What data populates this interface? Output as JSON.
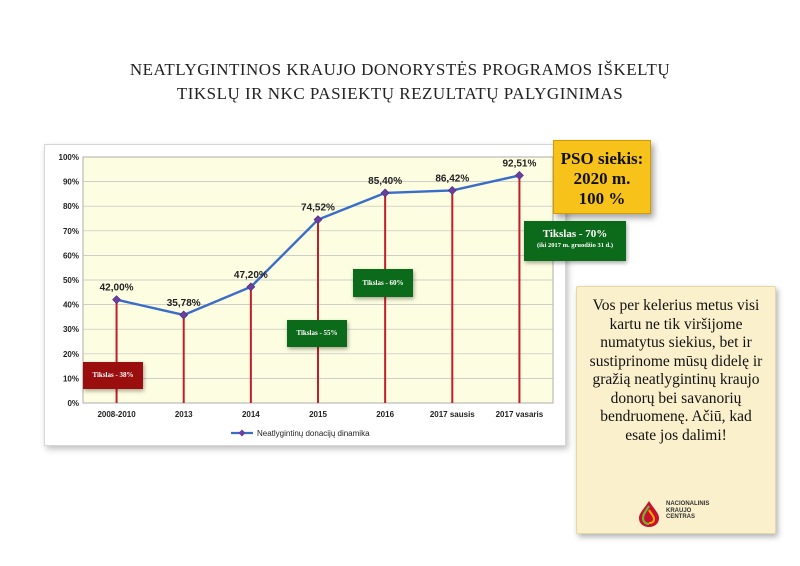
{
  "title": {
    "line1": "NEATLYGINTINOS KRAUJO DONORYSTĖS PROGRAMOS IŠKELTŲ",
    "line2": "TIKSLŲ IR NKC PASIEKTŲ REZULTATŲ PALYGINIMAS"
  },
  "chart_data": {
    "type": "line",
    "categories": [
      "2008-2010",
      "2013",
      "2014",
      "2015",
      "2016",
      "2017 sausis",
      "2017 vasaris"
    ],
    "series": [
      {
        "name": "Neatlygintinų donacijų dinamika",
        "values": [
          42.0,
          35.78,
          47.2,
          74.52,
          85.4,
          86.42,
          92.51
        ]
      }
    ],
    "data_labels": [
      "42,00%",
      "35,78%",
      "47,20%",
      "74,52%",
      "85,40%",
      "86,42%",
      "92,51%"
    ],
    "y_ticks": [
      "0%",
      "10%",
      "20%",
      "30%",
      "40%",
      "50%",
      "60%",
      "70%",
      "80%",
      "90%",
      "100%"
    ],
    "ylim": [
      0,
      100
    ],
    "grid": true,
    "drop_lines": true,
    "legend_position": "bottom",
    "colors": {
      "line": "#3a6cc9",
      "marker": "#6b3f9e",
      "drop_line": "#c01e2a",
      "plot_bg": "#fdfde1",
      "grid": "#bfbfbf"
    }
  },
  "targets": [
    {
      "label": "Tikslas - 38%",
      "color": "#9b0e0e"
    },
    {
      "label": "Tikslas - 55%",
      "color": "#0c6b1a"
    },
    {
      "label": "Tikslas - 60%",
      "color": "#0c6b1a"
    },
    {
      "label": "Tikslas -  70%",
      "sublabel": "(iki 2017 m. gruodžio 31 d.)",
      "color": "#0c6b1a"
    }
  ],
  "pso": {
    "line1": "PSO siekis:",
    "line2": "2020 m.",
    "line3": "100 %",
    "color": "#f7c21a"
  },
  "note": {
    "text": "Vos per kelerius metus visi kartu ne tik viršijome numatytus siekius, bet ir sustiprinome mūsų didelę ir gražią neatlygintinų kraujo donorų bei savanorių bendruomenę. Ačiū, kad esate jos dalimi!"
  },
  "logo": {
    "line1": "NACIONALINIS",
    "line2": "KRAUJO",
    "line3": "CENTRAS"
  }
}
